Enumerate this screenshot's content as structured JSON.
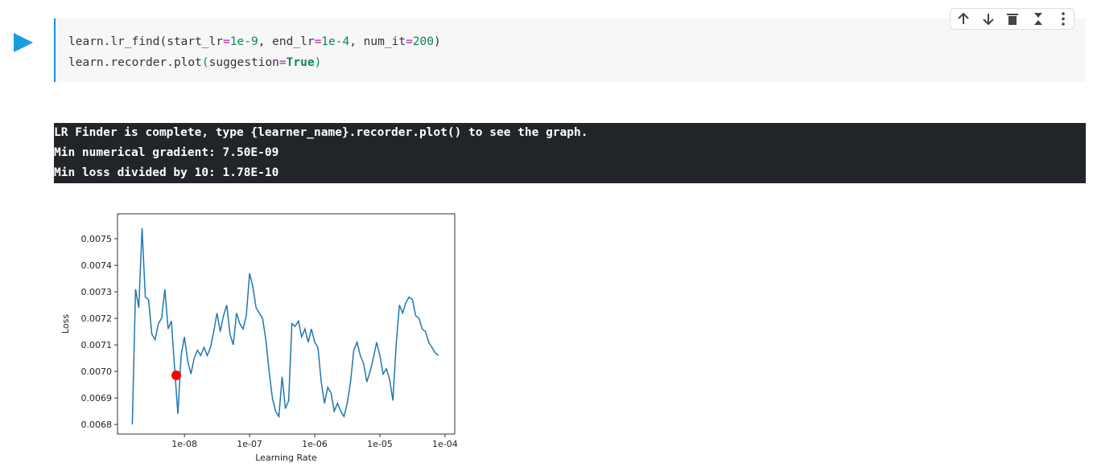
{
  "code": {
    "lines": [
      [
        "learn.lr_find(start_lr",
        "=",
        "1e-9",
        ", end_lr",
        "=",
        "1e-4",
        ", num_it",
        "=",
        "200",
        ")"
      ],
      [
        "learn.recorder.plot",
        "(",
        "suggestion",
        "=",
        "True",
        ")"
      ]
    ]
  },
  "output": {
    "lines": [
      "LR Finder is complete, type {learner_name}.recorder.plot() to see the graph.",
      "Min numerical gradient: 7.50E-09",
      "Min loss divided by 10: 1.78E-10"
    ]
  },
  "chart_data": {
    "type": "line",
    "xlabel": "Learning Rate",
    "ylabel": "Loss",
    "xscale": "log",
    "xlim": [
      9.4e-10,
      0.000141
    ],
    "ylim": [
      0.006764,
      0.007594
    ],
    "xticks": [
      {
        "value": 1e-08,
        "label": "1e-08"
      },
      {
        "value": 1e-07,
        "label": "1e-07"
      },
      {
        "value": 1e-06,
        "label": "1e-06"
      },
      {
        "value": 1e-05,
        "label": "1e-05"
      },
      {
        "value": 0.0001,
        "label": "1e-04"
      }
    ],
    "yticks": [
      0.0068,
      0.0069,
      {
        "value": 0.007,
        "label": "0.0070"
      },
      0.0071,
      0.0072,
      0.0073,
      0.0074,
      0.0075
    ],
    "grid": false,
    "series": [
      {
        "color": "#1f77b4",
        "x": [
          1.585e-09,
          1.778e-09,
          1.995e-09,
          2.239e-09,
          2.512e-09,
          2.818e-09,
          3.162e-09,
          3.548e-09,
          3.981e-09,
          4.467e-09,
          5.012e-09,
          5.623e-09,
          6.31e-09,
          7.079e-09,
          7.943e-09,
          8.913e-09,
          1e-08,
          1.122e-08,
          1.259e-08,
          1.413e-08,
          1.585e-08,
          1.778e-08,
          1.995e-08,
          2.239e-08,
          2.512e-08,
          2.818e-08,
          3.162e-08,
          3.548e-08,
          3.981e-08,
          4.467e-08,
          5.012e-08,
          5.623e-08,
          6.31e-08,
          7.079e-08,
          7.943e-08,
          8.913e-08,
          1e-07,
          1.122e-07,
          1.259e-07,
          1.413e-07,
          1.585e-07,
          1.778e-07,
          1.995e-07,
          2.239e-07,
          2.512e-07,
          2.818e-07,
          3.162e-07,
          3.548e-07,
          3.981e-07,
          4.467e-07,
          5.012e-07,
          5.623e-07,
          6.31e-07,
          7.079e-07,
          7.943e-07,
          8.913e-07,
          1e-06,
          1.122e-06,
          1.259e-06,
          1.413e-06,
          1.585e-06,
          1.778e-06,
          1.995e-06,
          2.239e-06,
          2.512e-06,
          2.818e-06,
          3.162e-06,
          3.548e-06,
          3.981e-06,
          4.467e-06,
          5.012e-06,
          5.623e-06,
          6.31e-06,
          7.079e-06,
          7.943e-06,
          8.913e-06,
          1e-05,
          1.122e-05,
          1.259e-05,
          1.413e-05,
          1.585e-05,
          1.778e-05,
          1.995e-05,
          2.239e-05,
          2.512e-05,
          2.818e-05,
          3.162e-05,
          3.548e-05,
          3.981e-05,
          4.467e-05,
          5.012e-05,
          5.623e-05,
          6.31e-05,
          7.079e-05,
          7.943e-05
        ],
        "values": [
          0.0068,
          0.00731,
          0.00724,
          0.00754,
          0.00728,
          0.00727,
          0.00714,
          0.00712,
          0.00718,
          0.0072,
          0.00731,
          0.00716,
          0.00719,
          0.00701,
          0.00684,
          0.00706,
          0.00713,
          0.00704,
          0.00699,
          0.00705,
          0.00708,
          0.00706,
          0.00709,
          0.00706,
          0.00709,
          0.00715,
          0.00722,
          0.00715,
          0.00721,
          0.00725,
          0.00714,
          0.0071,
          0.00722,
          0.00718,
          0.00716,
          0.00721,
          0.00737,
          0.00732,
          0.00724,
          0.00722,
          0.0072,
          0.00712,
          0.007,
          0.0069,
          0.00685,
          0.00683,
          0.00698,
          0.00686,
          0.00689,
          0.00718,
          0.00717,
          0.00719,
          0.00713,
          0.00716,
          0.00711,
          0.00716,
          0.00711,
          0.00709,
          0.00696,
          0.00688,
          0.00694,
          0.00692,
          0.00685,
          0.00688,
          0.00685,
          0.00683,
          0.00688,
          0.00696,
          0.00708,
          0.00711,
          0.00706,
          0.00703,
          0.00696,
          0.007,
          0.00705,
          0.00711,
          0.00706,
          0.00699,
          0.00701,
          0.00697,
          0.00689,
          0.0071,
          0.00725,
          0.00722,
          0.00726,
          0.00728,
          0.00727,
          0.00721,
          0.0072,
          0.00716,
          0.00715,
          0.00711,
          0.00709,
          0.00707,
          0.00706
        ]
      }
    ],
    "suggestion": {
      "x": 7.5e-09,
      "y": 0.006985,
      "color": "#ff0000"
    }
  }
}
